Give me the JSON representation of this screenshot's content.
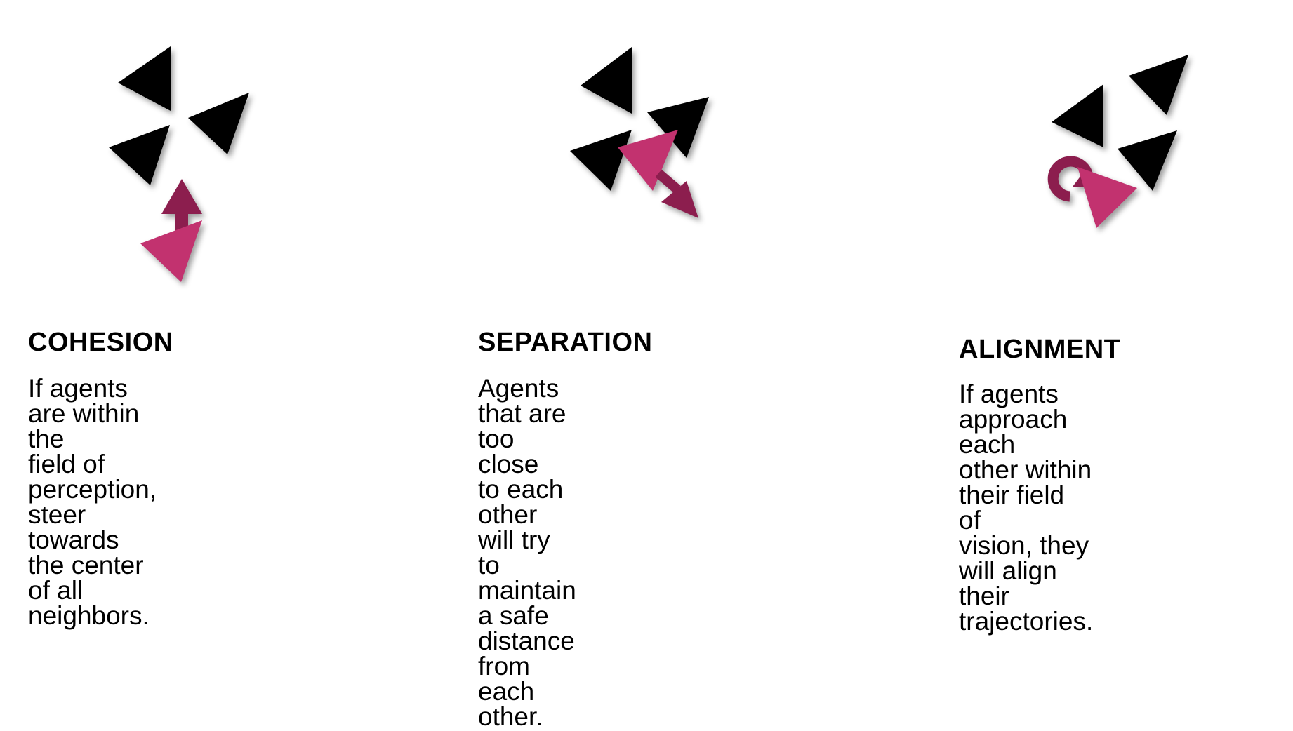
{
  "colors": {
    "agent": "#000000",
    "highlight_agent": "#c2326f",
    "steer_arrow": "#8c1e4e",
    "background": "#ffffff"
  },
  "panels": [
    {
      "title": "COHESION",
      "description": "If agents are within the\nfield of perception, steer\ntowards the center of all\nneighbors."
    },
    {
      "title": "SEPARATION",
      "description": "Agents that are too close\nto each other will try to\nmaintain a safe distance\nfrom each other."
    },
    {
      "title": "ALIGNMENT",
      "description": "If agents approach each\nother within their field of\nvision, they will align\ntheir trajectories."
    }
  ]
}
